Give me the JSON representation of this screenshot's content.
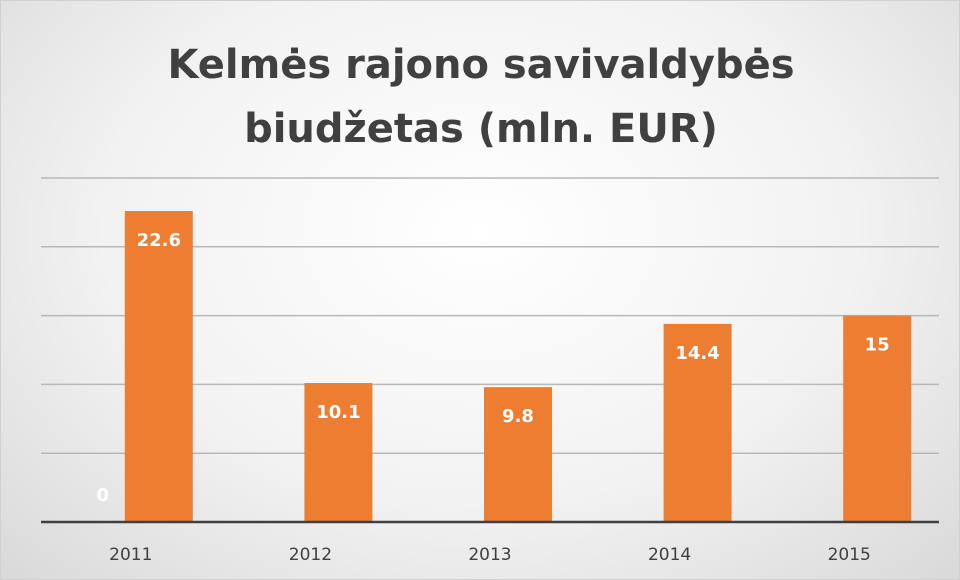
{
  "chart_data": {
    "type": "bar",
    "title": "Kelmės rajono savivaldybės biudžetas (mln. EUR)",
    "categories": [
      "2011",
      "2012",
      "2013",
      "2014",
      "2015"
    ],
    "series": [
      {
        "color": "#ed7d31",
        "values": [
          0,
          null,
          null,
          null,
          null
        ]
      },
      {
        "color": "#ed7d31",
        "values": [
          22.6,
          10.1,
          9.8,
          14.4,
          15
        ]
      }
    ],
    "ylim": [
      0,
      25
    ],
    "yticks": [
      0,
      5,
      10,
      15,
      20,
      25
    ],
    "grid": true
  }
}
